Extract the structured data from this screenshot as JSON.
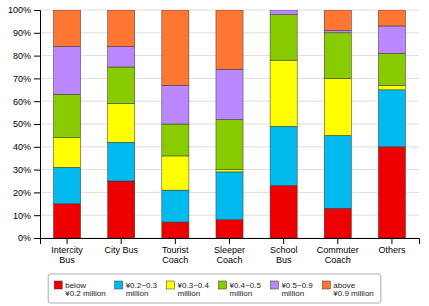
{
  "chart_data": {
    "type": "bar",
    "stacked": true,
    "categories": [
      "Intercity\nBus",
      "City Bus",
      "Tourist\nCoach",
      "Sleeper\nCoach",
      "School\nBus",
      "Commuter\nCoach",
      "Others"
    ],
    "series": [
      {
        "name": "below\n¥0.2 million",
        "color": "#EE0000",
        "values": [
          15,
          25,
          7,
          8,
          23,
          13,
          40
        ]
      },
      {
        "name": "¥0.2~0.3\nmillion",
        "color": "#00BBEE",
        "values": [
          16,
          17,
          14,
          21,
          26,
          32,
          25
        ]
      },
      {
        "name": "¥0.3~0.4\nmillion",
        "color": "#FFFF00",
        "values": [
          13,
          17,
          15,
          1,
          29,
          25,
          2
        ]
      },
      {
        "name": "¥0.4~0.5\nmillion",
        "color": "#88CC00",
        "values": [
          19,
          16,
          14,
          22,
          20,
          20,
          14
        ]
      },
      {
        "name": "¥0.5~0.9\nmillion",
        "color": "#BB88FF",
        "values": [
          21,
          9,
          17,
          22,
          2,
          1,
          12
        ]
      },
      {
        "name": "above\n¥0.9 million",
        "color": "#FF7733",
        "values": [
          16,
          16,
          33,
          26,
          0,
          9,
          7
        ]
      }
    ],
    "ylim": [
      0,
      100
    ],
    "yticks": [
      {
        "value": 0,
        "label": "0%"
      },
      {
        "value": 10,
        "label": "10%"
      },
      {
        "value": 20,
        "label": "20%"
      },
      {
        "value": 30,
        "label": "30%"
      },
      {
        "value": 40,
        "label": "40%"
      },
      {
        "value": 50,
        "label": "50%"
      },
      {
        "value": 60,
        "label": "60%"
      },
      {
        "value": 70,
        "label": "70%"
      },
      {
        "value": 80,
        "label": "80%"
      },
      {
        "value": 90,
        "label": "90%"
      },
      {
        "value": 100,
        "label": "100%"
      }
    ],
    "grid": true,
    "legend": "bottom"
  }
}
